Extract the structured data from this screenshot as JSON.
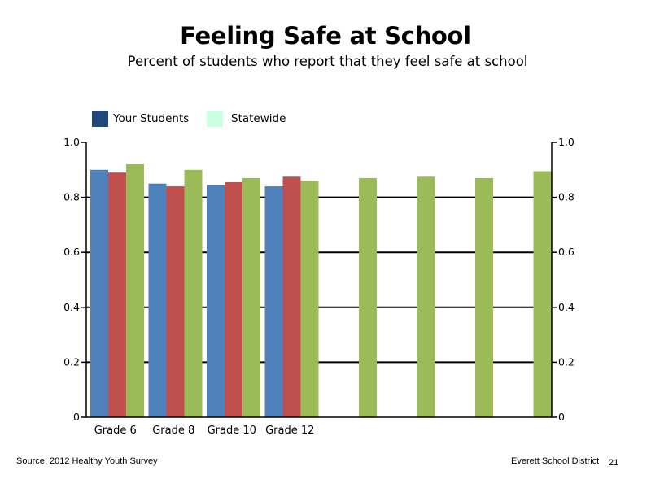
{
  "slide": {
    "title": "Feeling Safe at School",
    "subtitle": "Percent of students who report that they feel safe at school",
    "source": "Source: 2012 Healthy Youth Survey",
    "district": "Everett School District",
    "page_number": "21"
  },
  "legend": {
    "items": [
      {
        "label": "Your Students",
        "color": "#1F497D"
      },
      {
        "label": "Statewide",
        "color": "#CCFFE0"
      }
    ]
  },
  "chart_data": {
    "type": "bar",
    "categories": [
      "Grade 6",
      "Grade 8",
      "Grade 10",
      "Grade 12",
      "",
      "",
      "",
      ""
    ],
    "series": [
      {
        "color": "#4F81BD",
        "values": [
          0.9,
          0.85,
          0.845,
          0.84,
          null,
          null,
          null,
          null
        ]
      },
      {
        "color": "#C0504D",
        "values": [
          0.89,
          0.84,
          0.855,
          0.875,
          null,
          null,
          null,
          null
        ]
      },
      {
        "color": "#9BBB59",
        "values": [
          0.92,
          0.9,
          0.87,
          0.86,
          0.87,
          0.875,
          0.87,
          0.895
        ]
      }
    ],
    "ylim": [
      0,
      1.0
    ],
    "yticks": [
      "0",
      "0.2",
      "0.4",
      "0.6",
      "0.8",
      "1.0"
    ],
    "secondary_yticks": [
      "0",
      "0.2",
      "0.4",
      "0.6",
      "0.8",
      "1.0"
    ],
    "grid": true
  }
}
